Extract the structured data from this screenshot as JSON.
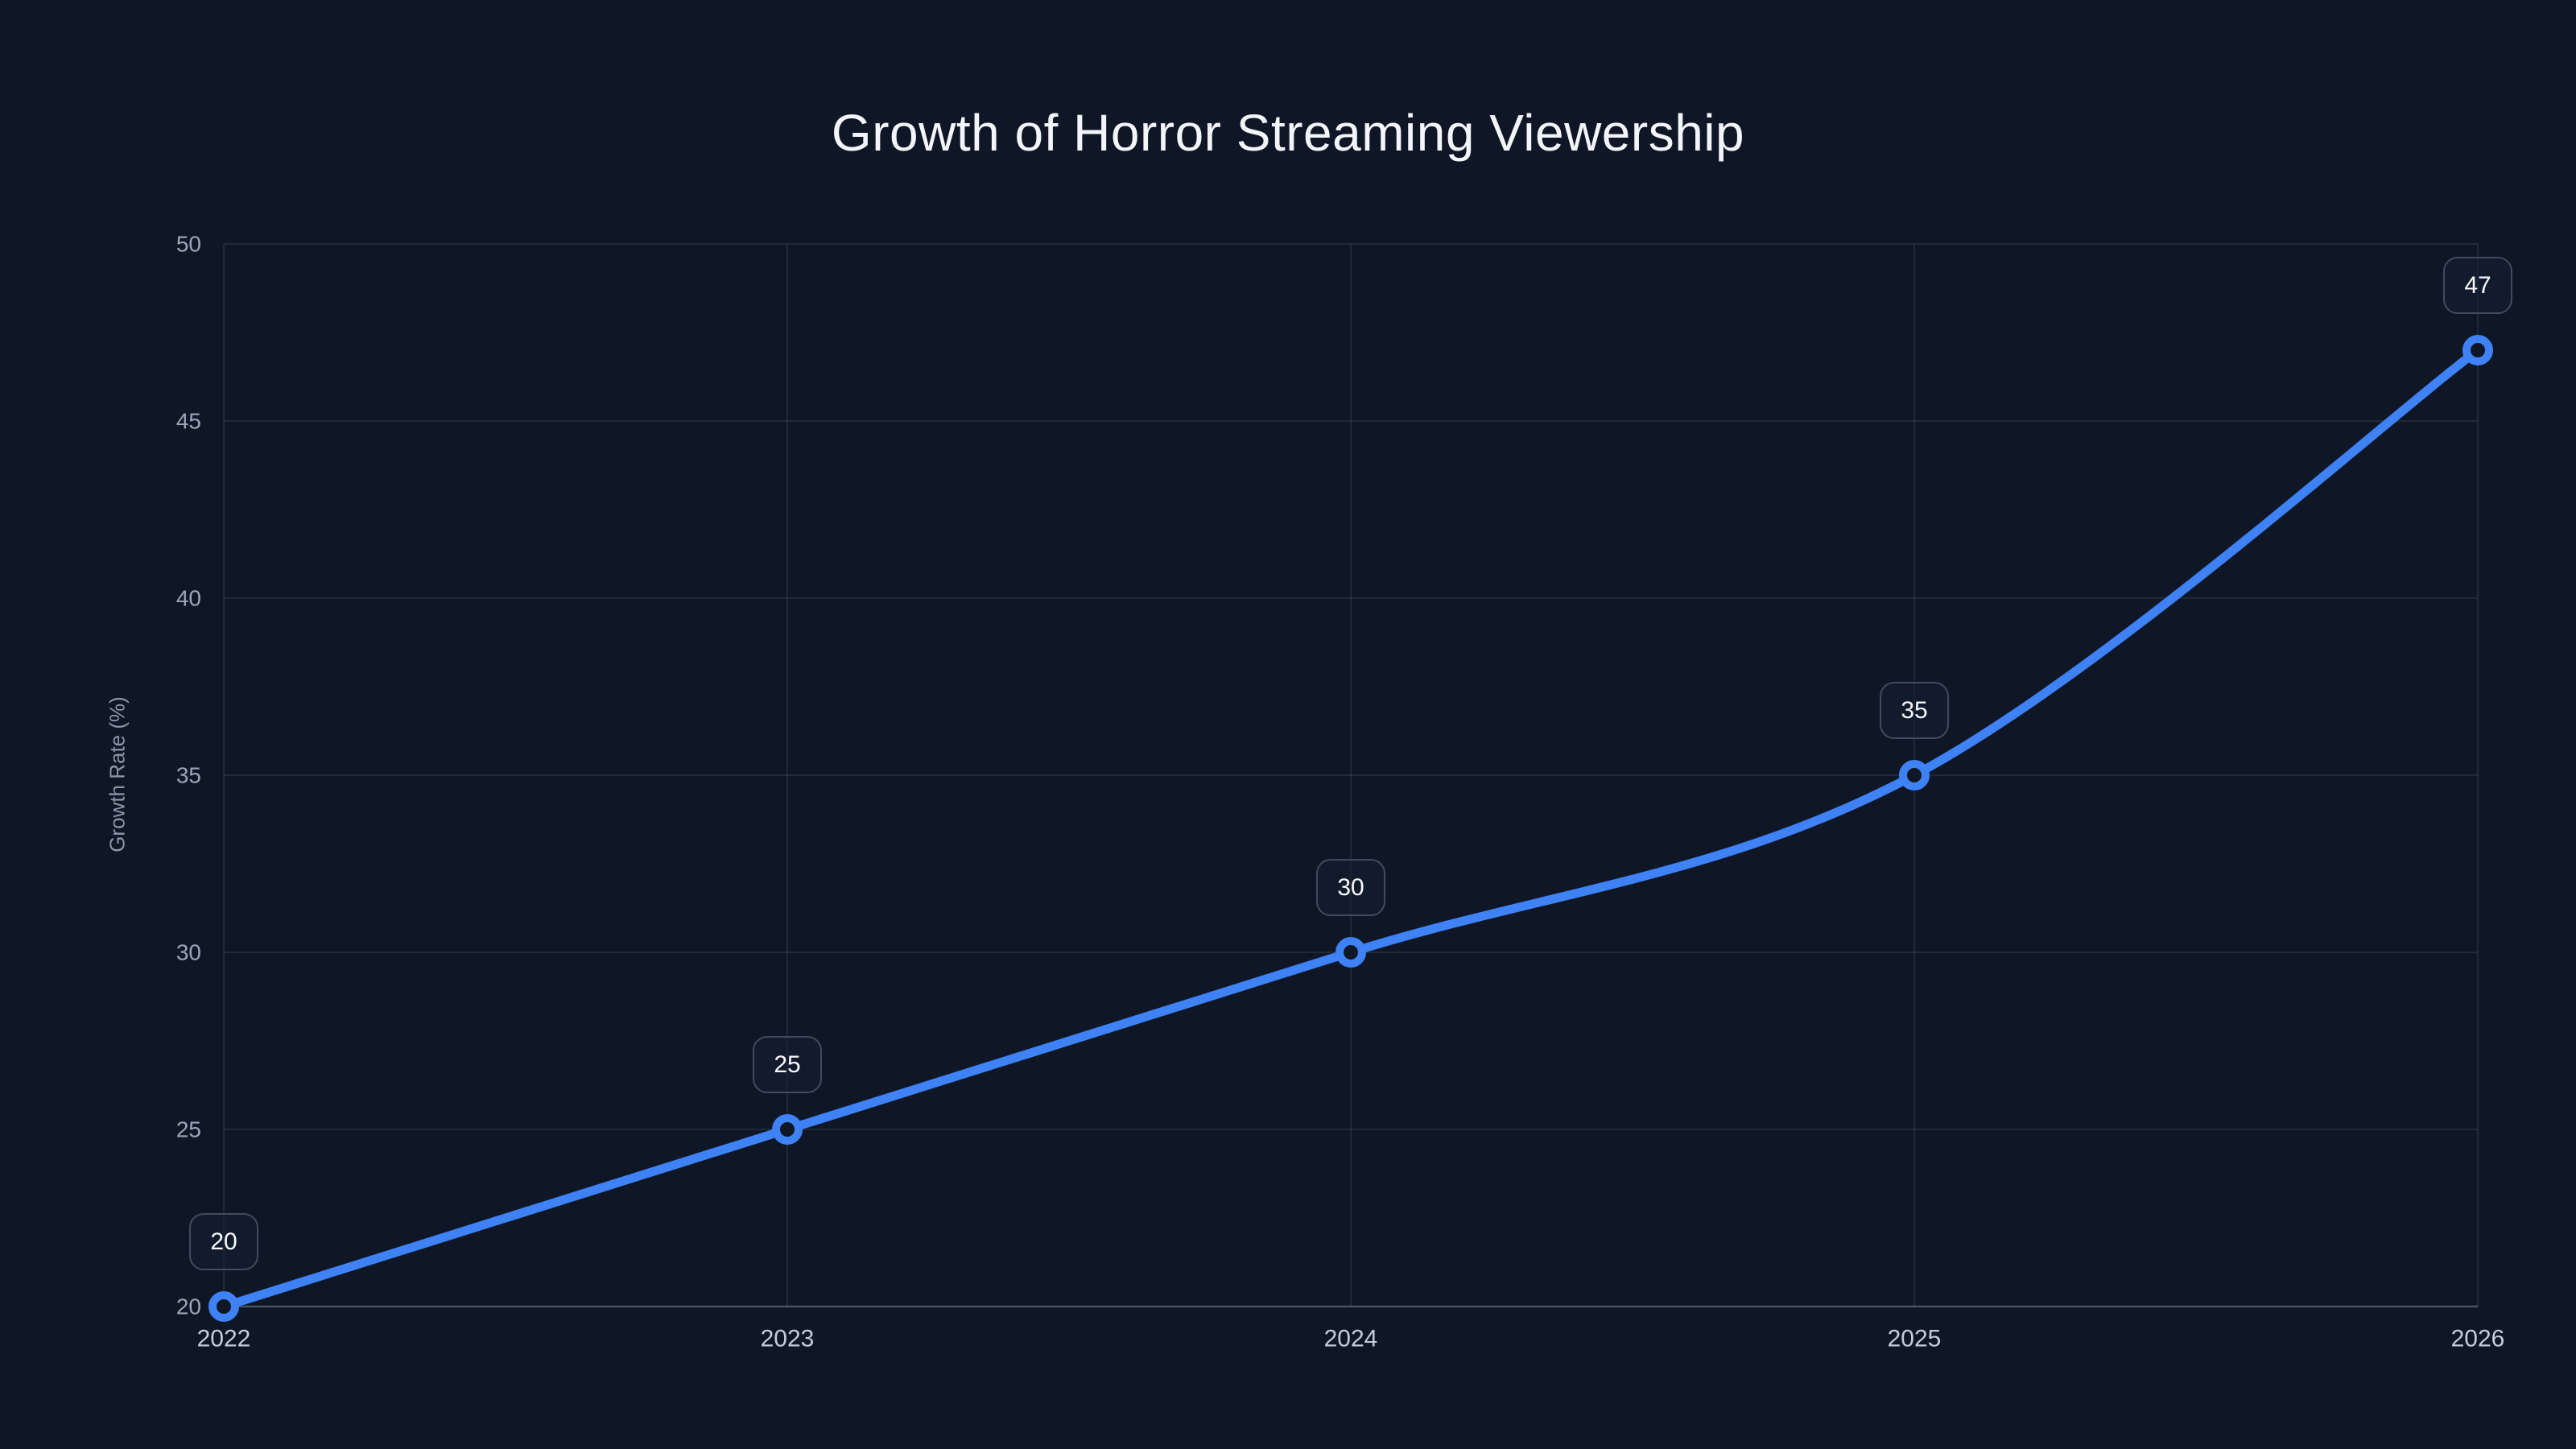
{
  "page": {
    "background_color": "#0f1726"
  },
  "chart_data": {
    "type": "line",
    "title": "Growth of Horror Streaming Viewership",
    "xlabel": "",
    "ylabel": "Growth Rate (%)",
    "x": [
      "2022",
      "2023",
      "2024",
      "2025",
      "2026"
    ],
    "series": [
      {
        "name": "Growth Rate",
        "values": [
          20,
          25,
          30,
          35,
          47
        ],
        "point_labels": [
          "20",
          "25",
          "30",
          "35",
          "47"
        ]
      }
    ],
    "yticks": [
      20,
      25,
      30,
      35,
      40,
      45,
      50
    ],
    "ylim": [
      20,
      50
    ],
    "grid": true,
    "legend_position": "none",
    "curve": "smooth",
    "colors": {
      "background": "#0f1726",
      "line": "#3e82f6",
      "marker_ring": "#3e82f6",
      "marker_fill": "#0f1726",
      "grid": "rgba(148,163,184,0.13)",
      "axis_line": "rgba(148,163,184,0.42)",
      "title_text": "#f2f5f9",
      "x_tick_text": "#c6ccd8",
      "y_tick_text": "#9aa6b8",
      "axis_title_text": "#8c97a9",
      "badge_border": "#414b5d",
      "badge_background": "rgba(22,31,50,0.55)",
      "badge_text": "#f7f9fc"
    }
  }
}
